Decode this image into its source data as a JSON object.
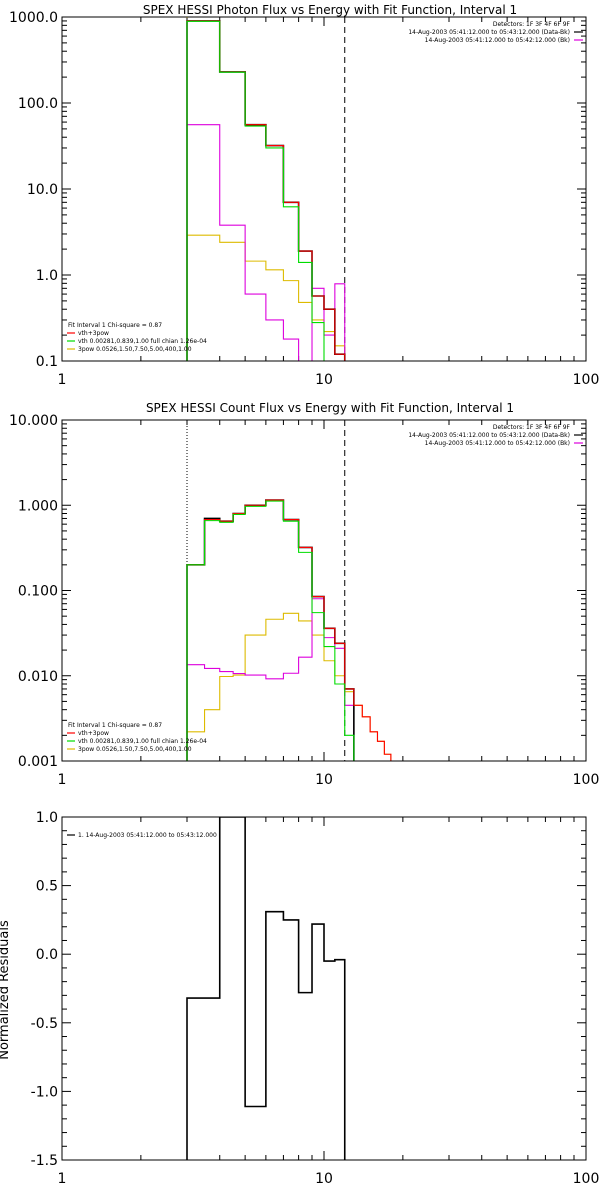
{
  "colors": {
    "black": "#000000",
    "red": "#ff0000",
    "green": "#00dd00",
    "magenta": "#dd00dd",
    "orange": "#ddbb00",
    "background": "#ffffff"
  },
  "chart_data": [
    {
      "id": "photon",
      "type": "line",
      "title": "SPEX HESSI Photon Flux vs Energy with Fit Function, Interval 1",
      "xscale": "log",
      "yscale": "log",
      "xlim": [
        1,
        100
      ],
      "ylim": [
        0.1,
        1000
      ],
      "xticks": [
        {
          "v": 1,
          "label": "1"
        },
        {
          "v": 10,
          "label": "10"
        },
        {
          "v": 100,
          "label": "100"
        }
      ],
      "yticks": [
        {
          "v": 0.1,
          "label": "0.1"
        },
        {
          "v": 1,
          "label": "1.0"
        },
        {
          "v": 10,
          "label": "10.0"
        },
        {
          "v": 100,
          "label": "100.0"
        },
        {
          "v": 1000,
          "label": "1000.0"
        }
      ],
      "vlines": [
        {
          "x": 3,
          "style": "dotted",
          "color": "orange"
        },
        {
          "x": 12,
          "style": "dashed",
          "color": "black"
        }
      ],
      "header_lines": [
        {
          "text": "Detectors: 1F 3F 4F 6F 9F",
          "swatch": null
        },
        {
          "text": "14-Aug-2003 05:41:12.000 to 05:43:12.000 (Data-Bk)",
          "swatch": "black"
        },
        {
          "text": "14-Aug-2003 05:41:12.000 to 05:42:12.000 (Bk)",
          "swatch": "magenta"
        }
      ],
      "legend": [
        {
          "text": "Fit Interval 1    Chi-square = 0.87",
          "swatch": null
        },
        {
          "text": "vth+3pow",
          "swatch": "red"
        },
        {
          "text": "vth 0.00281,0.839,1.00   full chian 1.26e-04",
          "swatch": "green"
        },
        {
          "text": "3pow 0.0526,1.50,7.50,5.00,400,1.00",
          "swatch": "orange"
        }
      ],
      "edges": [
        3.0,
        4.0,
        5.0,
        6.0,
        7.0,
        8.0,
        9.0,
        10.0,
        11.0,
        12.0
      ],
      "series": [
        {
          "key": "data",
          "color": "black",
          "values": [
            900,
            230,
            56,
            32,
            7.0,
            1.9,
            0.57,
            0.4,
            0.12
          ]
        },
        {
          "key": "fit_total",
          "color": "red",
          "values": [
            900,
            230,
            56,
            32,
            7.0,
            1.9,
            0.57,
            0.4,
            0.12
          ]
        },
        {
          "key": "thermal",
          "color": "green",
          "values": [
            890,
            228,
            54,
            30,
            6.2,
            1.4,
            0.28,
            0.1,
            0.05
          ]
        },
        {
          "key": "background",
          "color": "magenta",
          "values": [
            56,
            3.8,
            0.6,
            0.3,
            0.18,
            0.09,
            0.7,
            0.2,
            0.79
          ]
        },
        {
          "key": "power_law",
          "color": "orange",
          "values": [
            2.9,
            2.4,
            1.45,
            1.15,
            0.86,
            0.48,
            0.3,
            0.22,
            0.15
          ]
        }
      ]
    },
    {
      "id": "count",
      "type": "line",
      "title": "SPEX HESSI Count Flux vs Energy with Fit Function, Interval 1",
      "xscale": "log",
      "yscale": "log",
      "xlim": [
        1,
        100
      ],
      "ylim": [
        0.001,
        10
      ],
      "xticks": [
        {
          "v": 1,
          "label": "1"
        },
        {
          "v": 10,
          "label": "10"
        },
        {
          "v": 100,
          "label": "100"
        }
      ],
      "yticks": [
        {
          "v": 0.001,
          "label": "0.001"
        },
        {
          "v": 0.01,
          "label": "0.010"
        },
        {
          "v": 0.1,
          "label": "0.100"
        },
        {
          "v": 1,
          "label": "1.000"
        },
        {
          "v": 10,
          "label": "10.000"
        }
      ],
      "vlines": [
        {
          "x": 3,
          "style": "dotted",
          "color": "black"
        },
        {
          "x": 12,
          "style": "dashed",
          "color": "black"
        }
      ],
      "header_lines": [
        {
          "text": "Detectors: 1F 3F 4F 6F 9F",
          "swatch": null
        },
        {
          "text": "14-Aug-2003 05:41:12.000 to 05:43:12.000 (Data-Bk)",
          "swatch": "black"
        },
        {
          "text": "14-Aug-2003 05:41:12.000 to 05:42:12.000 (Bk)",
          "swatch": "magenta"
        }
      ],
      "legend": [
        {
          "text": "Fit Interval 1    Chi-square = 0.87",
          "swatch": null
        },
        {
          "text": "vth+3pow",
          "swatch": "red"
        },
        {
          "text": "vth 0.00281,0.839,1.00   full chian 1.26e-04",
          "swatch": "green"
        },
        {
          "text": "3pow 0.0526,1.50,7.50,5.00,400,1.00",
          "swatch": "orange"
        }
      ],
      "edges": [
        3.0,
        3.5,
        4.0,
        4.5,
        5.0,
        6.0,
        7.0,
        8.0,
        9.0,
        10.0,
        11.0,
        12.0,
        13.0,
        14.0,
        15.0,
        16.0,
        17.0,
        18.0,
        19.0,
        20.0
      ],
      "series": [
        {
          "key": "data",
          "color": "black",
          "values": [
            0.2,
            0.7,
            0.65,
            0.8,
            1.0,
            1.15,
            0.68,
            0.32,
            0.085,
            0.036,
            0.024,
            0.007,
            null,
            null,
            null,
            null,
            null,
            null,
            null
          ]
        },
        {
          "key": "fit_total",
          "color": "red",
          "values": [
            0.2,
            0.68,
            0.65,
            0.8,
            1.0,
            1.15,
            0.68,
            0.32,
            0.085,
            0.036,
            0.024,
            0.007,
            0.0045,
            0.0033,
            0.0022,
            0.0017,
            0.0012,
            0.001,
            null
          ]
        },
        {
          "key": "thermal",
          "color": "green",
          "values": [
            0.2,
            0.66,
            0.63,
            0.78,
            0.97,
            1.12,
            0.65,
            0.28,
            0.055,
            0.022,
            0.008,
            0.002,
            0.001,
            null,
            null,
            null,
            null,
            null,
            null
          ]
        },
        {
          "key": "background",
          "color": "magenta",
          "values": [
            0.0135,
            0.0122,
            0.0112,
            0.0106,
            0.0102,
            0.0092,
            0.0107,
            0.0165,
            0.08,
            0.028,
            0.021,
            0.0045,
            null,
            null,
            null,
            null,
            null,
            null,
            null
          ]
        },
        {
          "key": "power_law",
          "color": "orange",
          "values": [
            0.0022,
            0.004,
            0.0098,
            0.0102,
            0.03,
            0.046,
            0.054,
            0.044,
            0.03,
            0.015,
            0.01,
            0.0065,
            0.0045,
            0.0033,
            0.0022,
            0.0017,
            0.0012,
            0.001,
            null
          ]
        }
      ]
    },
    {
      "id": "residuals",
      "type": "line",
      "title": "",
      "xscale": "log",
      "yscale": "linear",
      "xlim": [
        1,
        100
      ],
      "ylim": [
        -1.5,
        1.0
      ],
      "ylabel": "Normalized Residuals",
      "xticks": [
        {
          "v": 1,
          "label": "1"
        },
        {
          "v": 10,
          "label": "10"
        },
        {
          "v": 100,
          "label": "100"
        }
      ],
      "yticks": [
        {
          "v": -1.5,
          "label": "-1.5"
        },
        {
          "v": -1.0,
          "label": "-1.0"
        },
        {
          "v": -0.5,
          "label": "-0.5"
        },
        {
          "v": 0.0,
          "label": "0.0"
        },
        {
          "v": 0.5,
          "label": "0.5"
        },
        {
          "v": 1.0,
          "label": "1.0"
        }
      ],
      "minor_y": 0.1,
      "header_lines": [],
      "legend": [
        {
          "text": "1. 14-Aug-2003 05:41:12.000 to 05:43:12.000",
          "swatch": "black"
        }
      ],
      "edges": [
        3.0,
        4.0,
        5.0,
        6.0,
        7.0,
        8.0,
        9.0,
        10.0,
        11.0,
        12.0
      ],
      "series": [
        {
          "key": "residuals",
          "color": "black",
          "start_from": -1.5,
          "end_to": -1.5,
          "values": [
            -0.32,
            1.0,
            -1.11,
            0.31,
            0.25,
            -0.28,
            0.22,
            -0.05,
            -0.04
          ]
        }
      ]
    }
  ]
}
